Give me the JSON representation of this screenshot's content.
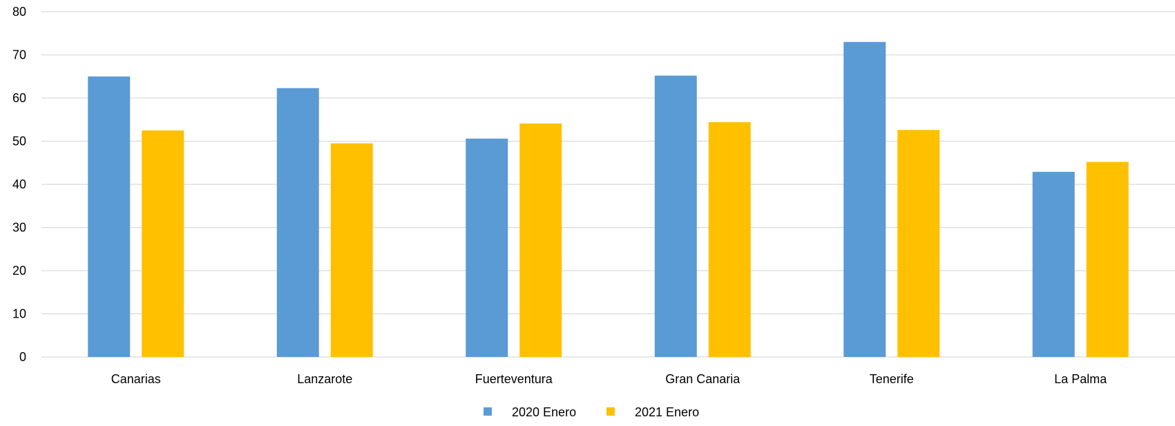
{
  "chart_data": {
    "type": "bar",
    "categories": [
      "Canarias",
      "Lanzarote",
      "Fuerteventura",
      "Gran Canaria",
      "Tenerife",
      "La Palma"
    ],
    "series": [
      {
        "name": "2020 Enero",
        "values": [
          65.0,
          62.3,
          50.6,
          65.2,
          73.0,
          42.9
        ],
        "color": "#5B9BD5"
      },
      {
        "name": "2021 Enero",
        "values": [
          52.5,
          49.5,
          54.1,
          54.4,
          52.6,
          45.2
        ],
        "color": "#FFC000"
      }
    ],
    "yticks": [
      "0",
      "10",
      "20",
      "30",
      "40",
      "50",
      "60",
      "70",
      "80"
    ],
    "ylim": [
      0,
      80
    ],
    "grid": true,
    "legend_position": "bottom",
    "gridline_color": "#D9D9D9"
  }
}
